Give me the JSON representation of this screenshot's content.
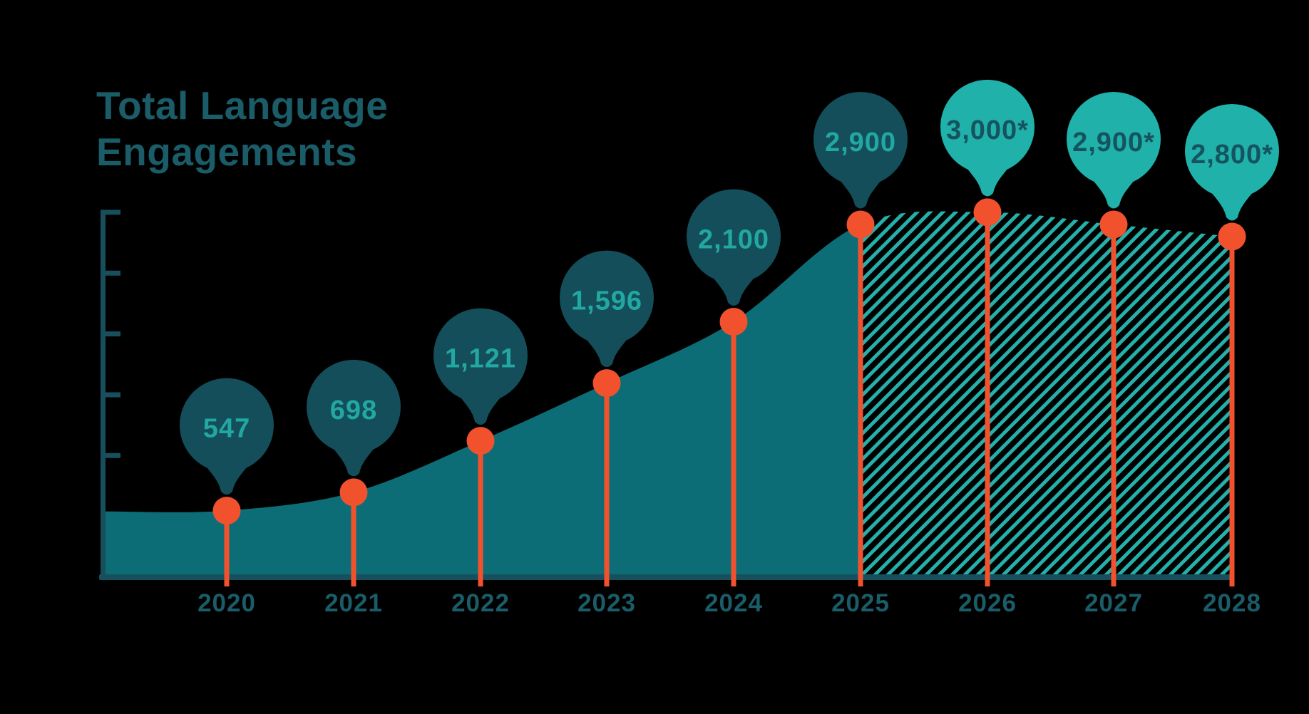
{
  "colors": {
    "background": "#000000",
    "title_text": "#1a5c68",
    "axis": "#174f5c",
    "area_fill": "#0d6d76",
    "hatch_stripe": "#24b1aa",
    "balloon_dark": "#134e5a",
    "balloon_light": "#1fb1aa",
    "balloon_text_on_dark": "#22a8a1",
    "balloon_text_on_light": "#15535f",
    "marker_orange": "#f2512e",
    "year_label": "#1a5c68"
  },
  "chart_data": {
    "type": "area",
    "title": "Total Language Engagements",
    "categories": [
      "2020",
      "2021",
      "2022",
      "2023",
      "2024",
      "2025",
      "2026",
      "2027",
      "2028"
    ],
    "values": [
      547,
      698,
      1121,
      1596,
      2100,
      2900,
      3000,
      2900,
      2800
    ],
    "point_labels": [
      "547",
      "698",
      "1,121",
      "1,596",
      "2,100",
      "2,900",
      "3,000*",
      "2,900*",
      "2,800*"
    ],
    "projected": [
      false,
      false,
      false,
      false,
      false,
      false,
      true,
      true,
      true
    ],
    "actual_fill_style": "solid",
    "projected_fill_style": "diagonal-hatch",
    "xlabel": "",
    "ylabel": "",
    "ylim": [
      0,
      3200
    ],
    "y_tick_values": [
      500,
      1000,
      1500,
      2000,
      2500,
      3000
    ],
    "y_tick_labels_shown": false,
    "grid": false,
    "legend": "none"
  }
}
